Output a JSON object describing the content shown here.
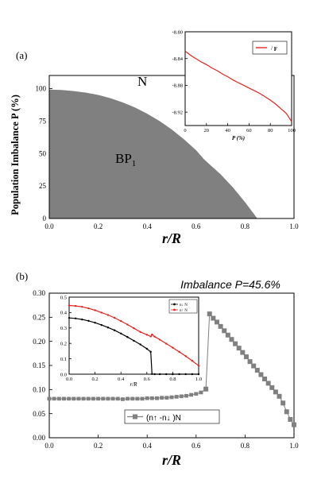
{
  "chart_data": [
    {
      "id": "a",
      "type": "area",
      "panel_label": "(a)",
      "xlabel": "r/R",
      "ylabel": "Population Imbalance P (%)",
      "xlim": [
        0,
        1.0
      ],
      "ylim": [
        0,
        110
      ],
      "xticks": [
        "0.0",
        "0.2",
        "0.4",
        "0.6",
        "0.8",
        "1.0"
      ],
      "yticks": [
        "0",
        "25",
        "50",
        "75",
        "100"
      ],
      "region_labels": {
        "normal": "N",
        "bp": "BP",
        "bp_sub": "1"
      },
      "fill_color": "#808080",
      "boundary": {
        "x": [
          0,
          0.05,
          0.1,
          0.15,
          0.2,
          0.25,
          0.3,
          0.35,
          0.4,
          0.45,
          0.5,
          0.55,
          0.6,
          0.63,
          0.65,
          0.7,
          0.75,
          0.8,
          0.85
        ],
        "y": [
          99.2,
          98.8,
          98.0,
          96.8,
          95.0,
          92.5,
          89.3,
          85.4,
          80.6,
          75.0,
          68.5,
          61.0,
          52.5,
          46.0,
          42.5,
          34.0,
          24.0,
          12.5,
          0
        ]
      }
    },
    {
      "id": "a-inset",
      "type": "line",
      "xlabel": "P (%)",
      "xlim": [
        0,
        100
      ],
      "ylim": [
        -8.94,
        -8.8
      ],
      "xticks": [
        "0",
        "20",
        "40",
        "60",
        "80",
        "100"
      ],
      "yticks": [
        "-8.80",
        "-8.84",
        "-8.88",
        "-8.92"
      ],
      "legend": {
        "label": "/",
        "sub": "F"
      },
      "color": "#e8231e",
      "x": [
        0,
        5,
        10,
        15,
        20,
        25,
        30,
        35,
        40,
        45,
        50,
        55,
        60,
        65,
        70,
        75,
        80,
        85,
        90,
        95,
        100
      ],
      "y": [
        -8.829,
        -8.835,
        -8.84,
        -8.845,
        -8.849,
        -8.854,
        -8.858,
        -8.863,
        -8.867,
        -8.872,
        -8.876,
        -8.88,
        -8.884,
        -8.888,
        -8.892,
        -8.897,
        -8.902,
        -8.908,
        -8.915,
        -8.922,
        -8.934
      ]
    },
    {
      "id": "b",
      "type": "line",
      "panel_label": "(b)",
      "title": "Imbalance P=45.6%",
      "xlabel": "r/R",
      "xlim": [
        0,
        1.0
      ],
      "ylim": [
        0,
        0.3
      ],
      "xticks": [
        "0.0",
        "0.2",
        "0.4",
        "0.6",
        "0.8",
        "1.0"
      ],
      "yticks": [
        "0.00",
        "0.05",
        "0.10",
        "0.15",
        "0.20",
        "0.25",
        "0.30"
      ],
      "legend": "(n↑ -n↓ )N",
      "color": "#808080",
      "x": [
        0.0,
        0.02,
        0.04,
        0.06,
        0.08,
        0.1,
        0.12,
        0.14,
        0.16,
        0.18,
        0.2,
        0.22,
        0.24,
        0.26,
        0.28,
        0.3,
        0.32,
        0.34,
        0.36,
        0.38,
        0.4,
        0.42,
        0.44,
        0.46,
        0.48,
        0.5,
        0.52,
        0.54,
        0.56,
        0.58,
        0.6,
        0.62,
        0.64,
        0.655,
        0.67,
        0.685,
        0.7,
        0.715,
        0.73,
        0.745,
        0.76,
        0.775,
        0.79,
        0.805,
        0.82,
        0.835,
        0.85,
        0.865,
        0.88,
        0.895,
        0.91,
        0.925,
        0.94,
        0.955,
        0.97,
        0.985,
        1.0
      ],
      "y": [
        0.081,
        0.081,
        0.081,
        0.081,
        0.081,
        0.081,
        0.081,
        0.081,
        0.081,
        0.081,
        0.081,
        0.081,
        0.081,
        0.081,
        0.081,
        0.08,
        0.081,
        0.081,
        0.081,
        0.081,
        0.082,
        0.082,
        0.082,
        0.083,
        0.083,
        0.084,
        0.085,
        0.086,
        0.087,
        0.089,
        0.091,
        0.094,
        0.101,
        0.257,
        0.248,
        0.24,
        0.231,
        0.222,
        0.213,
        0.204,
        0.195,
        0.186,
        0.177,
        0.168,
        0.158,
        0.149,
        0.14,
        0.131,
        0.122,
        0.113,
        0.104,
        0.095,
        0.086,
        0.072,
        0.054,
        0.038,
        0.027
      ]
    },
    {
      "id": "b-inset",
      "type": "line",
      "xlabel": "r/R",
      "xlim": [
        0,
        1.0
      ],
      "ylim": [
        0,
        0.5
      ],
      "xticks": [
        "0.0",
        "0.2",
        "0.4",
        "0.6",
        "0.8",
        "1.0"
      ],
      "yticks": [
        "0.0",
        "0.1",
        "0.2",
        "0.3",
        "0.4",
        "0.5"
      ],
      "legend": [
        "n↓ N",
        "n↑ N"
      ],
      "series": [
        {
          "color": "#000000",
          "x": [
            0.0,
            0.05,
            0.1,
            0.15,
            0.2,
            0.25,
            0.3,
            0.35,
            0.4,
            0.45,
            0.5,
            0.55,
            0.6,
            0.63,
            0.64,
            0.66,
            0.7,
            0.75,
            0.8,
            0.85,
            0.9,
            0.95,
            1.0
          ],
          "y": [
            0.365,
            0.362,
            0.355,
            0.346,
            0.334,
            0.319,
            0.303,
            0.285,
            0.264,
            0.241,
            0.217,
            0.193,
            0.165,
            0.145,
            0.001,
            0.0,
            0.0,
            0.0,
            0.0,
            0.0,
            0.0,
            0.0,
            0.0
          ]
        },
        {
          "color": "#e8231e",
          "x": [
            0.0,
            0.05,
            0.1,
            0.15,
            0.2,
            0.25,
            0.3,
            0.35,
            0.4,
            0.45,
            0.5,
            0.55,
            0.6,
            0.63,
            0.64,
            0.66,
            0.7,
            0.75,
            0.8,
            0.85,
            0.9,
            0.95,
            1.0
          ],
          "y": [
            0.446,
            0.443,
            0.437,
            0.427,
            0.415,
            0.4,
            0.384,
            0.366,
            0.345,
            0.322,
            0.298,
            0.274,
            0.256,
            0.245,
            0.258,
            0.244,
            0.224,
            0.198,
            0.172,
            0.145,
            0.117,
            0.087,
            0.055
          ]
        }
      ]
    }
  ]
}
